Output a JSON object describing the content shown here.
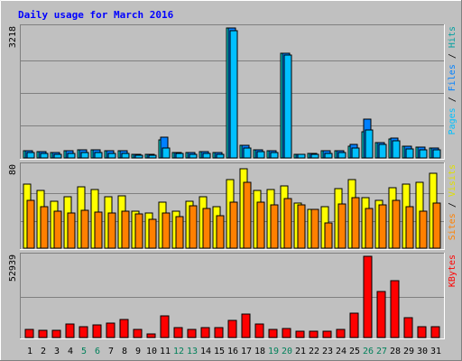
{
  "chart_data": {
    "type": "bar",
    "title": "Daily usage for March 2016",
    "days": [
      1,
      2,
      3,
      4,
      5,
      6,
      7,
      8,
      9,
      10,
      11,
      12,
      13,
      14,
      15,
      16,
      17,
      18,
      19,
      20,
      21,
      22,
      23,
      24,
      25,
      26,
      27,
      28,
      29,
      30,
      31
    ],
    "weekend_days": [
      5,
      6,
      12,
      13,
      19,
      20,
      26,
      27
    ],
    "panels": [
      {
        "max_label": "3218",
        "right_labels": [
          "Pages",
          "Files",
          "Hits"
        ],
        "ylim": [
          0,
          3218
        ],
        "series": [
          {
            "name": "Hits",
            "color": "#00ffff",
            "values": [
              180,
              160,
              130,
              170,
              200,
              190,
              170,
              180,
              90,
              100,
              450,
              140,
              130,
              150,
              140,
              3218,
              320,
              200,
              180,
              2600,
              100,
              120,
              180,
              180,
              300,
              650,
              380,
              480,
              290,
              260,
              240
            ]
          },
          {
            "name": "Files",
            "color": "#0080ff",
            "values": [
              180,
              160,
              130,
              170,
              200,
              190,
              170,
              180,
              90,
              100,
              520,
              140,
              130,
              150,
              140,
              3218,
              320,
              200,
              180,
              2600,
              100,
              120,
              180,
              180,
              330,
              950,
              380,
              500,
              290,
              260,
              240
            ]
          },
          {
            "name": "Pages",
            "color": "#00c0ff",
            "values": [
              130,
              120,
              100,
              110,
              130,
              130,
              110,
              120,
              70,
              70,
              250,
              110,
              100,
              110,
              100,
              3150,
              250,
              150,
              130,
              2550,
              80,
              90,
              120,
              130,
              250,
              700,
              330,
              420,
              230,
              200,
              190
            ]
          }
        ]
      },
      {
        "max_label": "80",
        "right_labels": [
          "Sites",
          "Visits"
        ],
        "ylim": [
          0,
          80
        ],
        "series": [
          {
            "name": "Visits",
            "color": "#ffff00",
            "values": [
              62,
              56,
              46,
              50,
              60,
              57,
              50,
              51,
              36,
              34,
              45,
              36,
              46,
              50,
              40,
              67,
              77,
              56,
              57,
              61,
              44,
              38,
              40,
              58,
              67,
              49,
              47,
              59,
              62,
              64,
              73
            ]
          },
          {
            "name": "Sites",
            "color": "#ff8000",
            "values": [
              47,
              40,
              36,
              34,
              37,
              35,
              34,
              36,
              33,
              28,
              34,
              31,
              41,
              39,
              32,
              45,
              64,
              45,
              42,
              48,
              42,
              38,
              25,
              43,
              49,
              39,
              42,
              47,
              40,
              36,
              44
            ]
          }
        ]
      },
      {
        "max_label": "52939",
        "right_labels": [
          "KBytes"
        ],
        "ylim": [
          0,
          52939
        ],
        "series": [
          {
            "name": "KBytes",
            "color": "#ff0000",
            "values": [
              5000,
              4500,
              4500,
              9000,
              7000,
              8500,
              9500,
              12000,
              5000,
              2200,
              14000,
              6500,
              5500,
              6500,
              6500,
              11000,
              15000,
              9000,
              5000,
              6000,
              4000,
              4000,
              4000,
              5000,
              16000,
              52939,
              30000,
              37000,
              13000,
              6800,
              6800
            ]
          }
        ]
      }
    ]
  }
}
